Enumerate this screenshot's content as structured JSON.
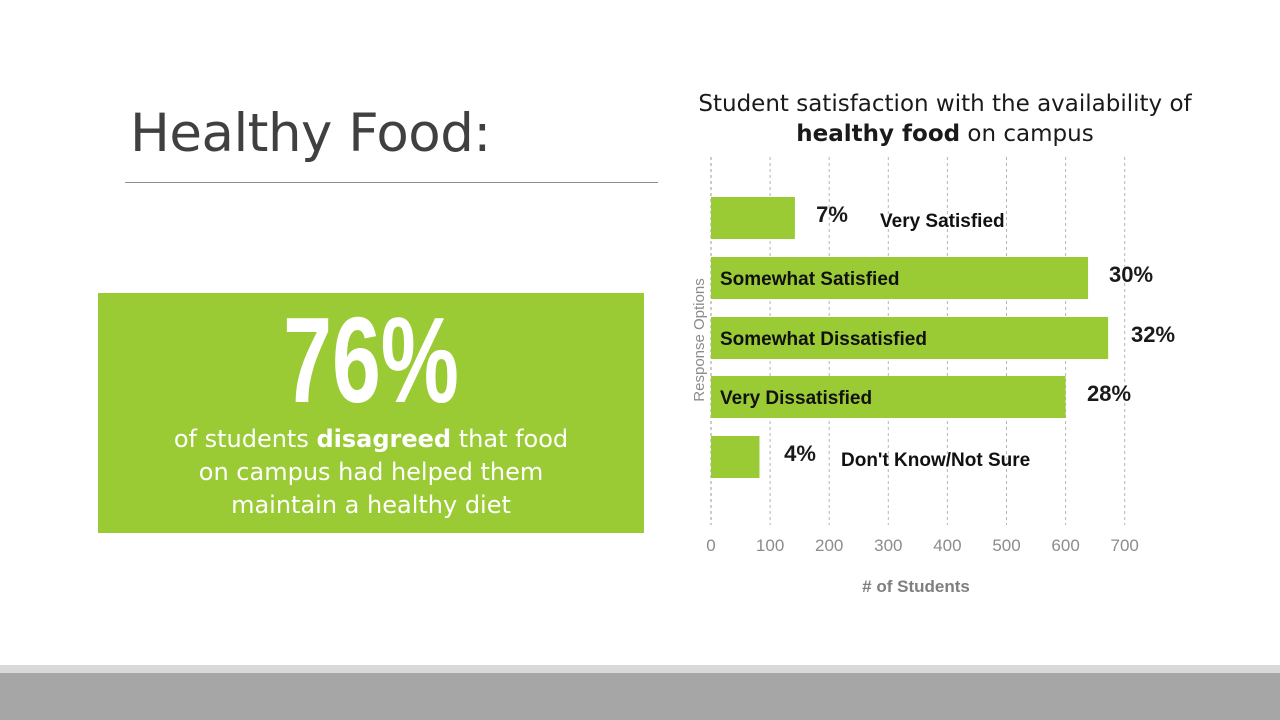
{
  "slide": {
    "title": "Healthy Food:"
  },
  "stat": {
    "number": "76%",
    "caption_line1_pre": "of students ",
    "caption_line1_bold": "disagreed",
    "caption_line1_post": " that food",
    "caption_line2": "on campus had helped them",
    "caption_line3": "maintain a healthy diet"
  },
  "colors": {
    "accent": "#9acb34",
    "footer": "#a6a6a6"
  },
  "chart_data": {
    "type": "bar",
    "orientation": "horizontal",
    "title_line1": "Student satisfaction with the availability of",
    "title_line2_bold": "healthy food",
    "title_line2_rest": " on campus",
    "xlabel": "# of Students",
    "ylabel": "Response Options",
    "xlim": [
      0,
      700
    ],
    "xticks": [
      0,
      100,
      200,
      300,
      400,
      500,
      600,
      700
    ],
    "grid": true,
    "categories": [
      "Very Satisfied",
      "Somewhat Satisfied",
      "Somewhat Dissatisfied",
      "Very Dissatisfied",
      "Don't Know/Not Sure"
    ],
    "values": [
      142,
      638,
      672,
      600,
      82
    ],
    "percent_labels": [
      "7%",
      "30%",
      "32%",
      "28%",
      "4%"
    ]
  }
}
